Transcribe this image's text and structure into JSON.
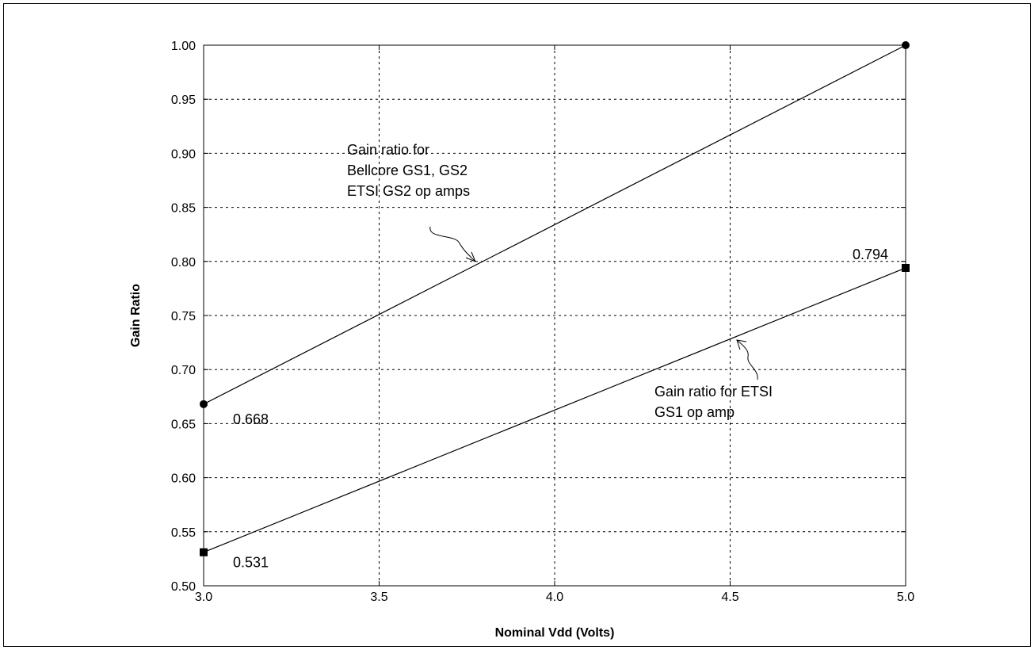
{
  "chart_data": {
    "type": "line",
    "title": "",
    "xlabel": "Nominal Vdd (Volts)",
    "ylabel": "Gain Ratio",
    "xlim": [
      3.0,
      5.0
    ],
    "ylim": [
      0.5,
      1.0
    ],
    "x_ticks": [
      "3.0",
      "3.5",
      "4.0",
      "4.5",
      "5.0"
    ],
    "y_ticks": [
      "0.50",
      "0.55",
      "0.60",
      "0.65",
      "0.70",
      "0.75",
      "0.80",
      "0.85",
      "0.90",
      "0.95",
      "1.00"
    ],
    "grid": true,
    "legend": "none",
    "series": [
      {
        "x": [
          3.0,
          5.0
        ],
        "y": [
          0.668,
          1.0
        ],
        "marker": "circle"
      },
      {
        "x": [
          3.0,
          5.0
        ],
        "y": [
          0.531,
          0.794
        ],
        "marker": "square"
      }
    ],
    "point_labels": [
      "0.668",
      "0.531",
      "0.794"
    ],
    "annotations": [
      [
        "Gain ratio for",
        "Bellcore GS1, GS2",
        "ETSI GS2 op amps"
      ],
      [
        "Gain ratio for ETSI",
        "GS1 op amp"
      ]
    ]
  }
}
